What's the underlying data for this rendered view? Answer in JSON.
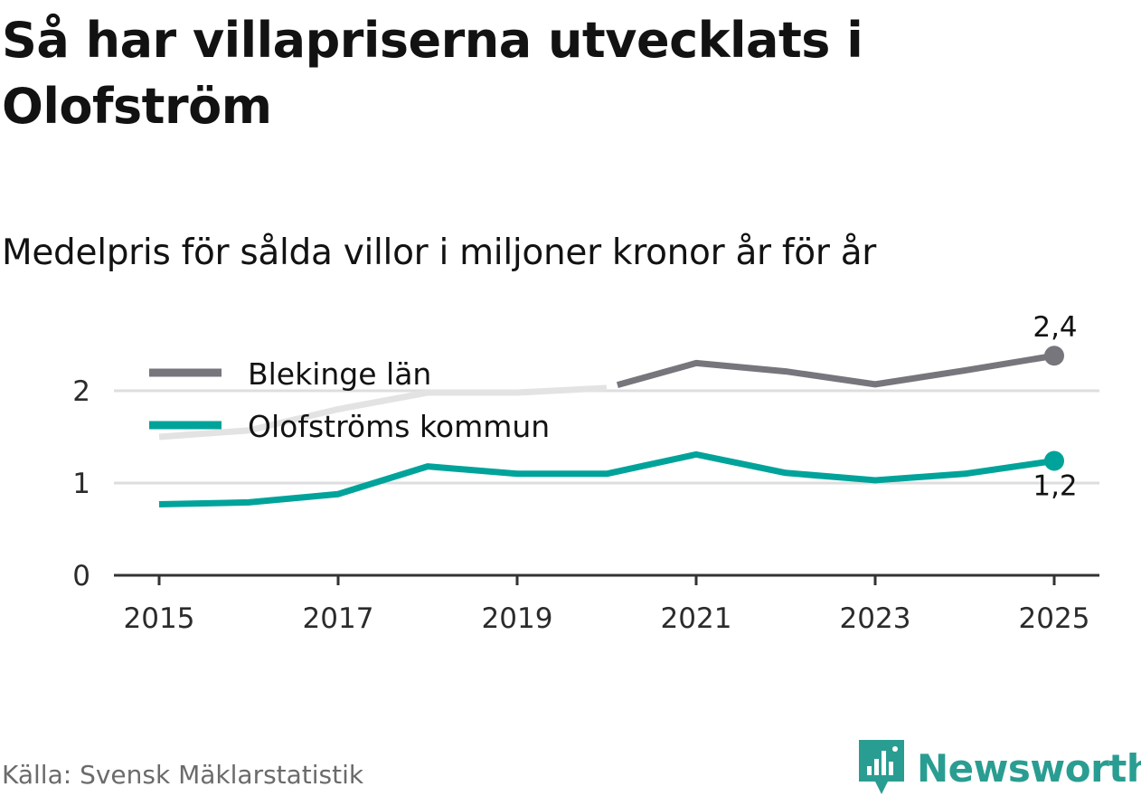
{
  "title": "Så har villapriserna utvecklats i Olofström",
  "subtitle": "Medelpris för sålda villor i miljoner kronor år för år",
  "source": "Källa: Svensk Mäklarstatistik",
  "brand": {
    "name": "Newsworthy",
    "icon": "newsworthy-logo-icon",
    "color": "#2a9d92"
  },
  "colors": {
    "blekinge": "#77767c",
    "blekinge_faded": "#e3e3e3",
    "olofstrom": "#00a39a",
    "grid": "#dedede",
    "axis": "#333333"
  },
  "chart_data": {
    "type": "line",
    "title": "Så har villapriserna utvecklats i Olofström",
    "subtitle": "Medelpris för sålda villor i miljoner kronor år för år",
    "x": [
      2015,
      2016,
      2017,
      2018,
      2019,
      2020,
      2021,
      2022,
      2023,
      2024,
      2025
    ],
    "ylim": [
      0,
      2.5
    ],
    "y_ticks": [
      0,
      1,
      2
    ],
    "x_ticks": [
      2015,
      2017,
      2019,
      2021,
      2023,
      2025
    ],
    "grid": true,
    "legend_position": "top-left",
    "series": [
      {
        "name": "Blekinge län",
        "key": "blekinge",
        "values": [
          1.5,
          1.57,
          1.8,
          1.98,
          1.98,
          2.03,
          2.3,
          2.21,
          2.07,
          2.22,
          2.38
        ],
        "faded_until": 2020,
        "end_label": "2,4"
      },
      {
        "name": "Olofströms kommun",
        "key": "olofstrom",
        "values": [
          0.77,
          0.79,
          0.88,
          1.18,
          1.1,
          1.1,
          1.31,
          1.11,
          1.03,
          1.1,
          1.24
        ],
        "end_label": "1,2"
      }
    ]
  }
}
